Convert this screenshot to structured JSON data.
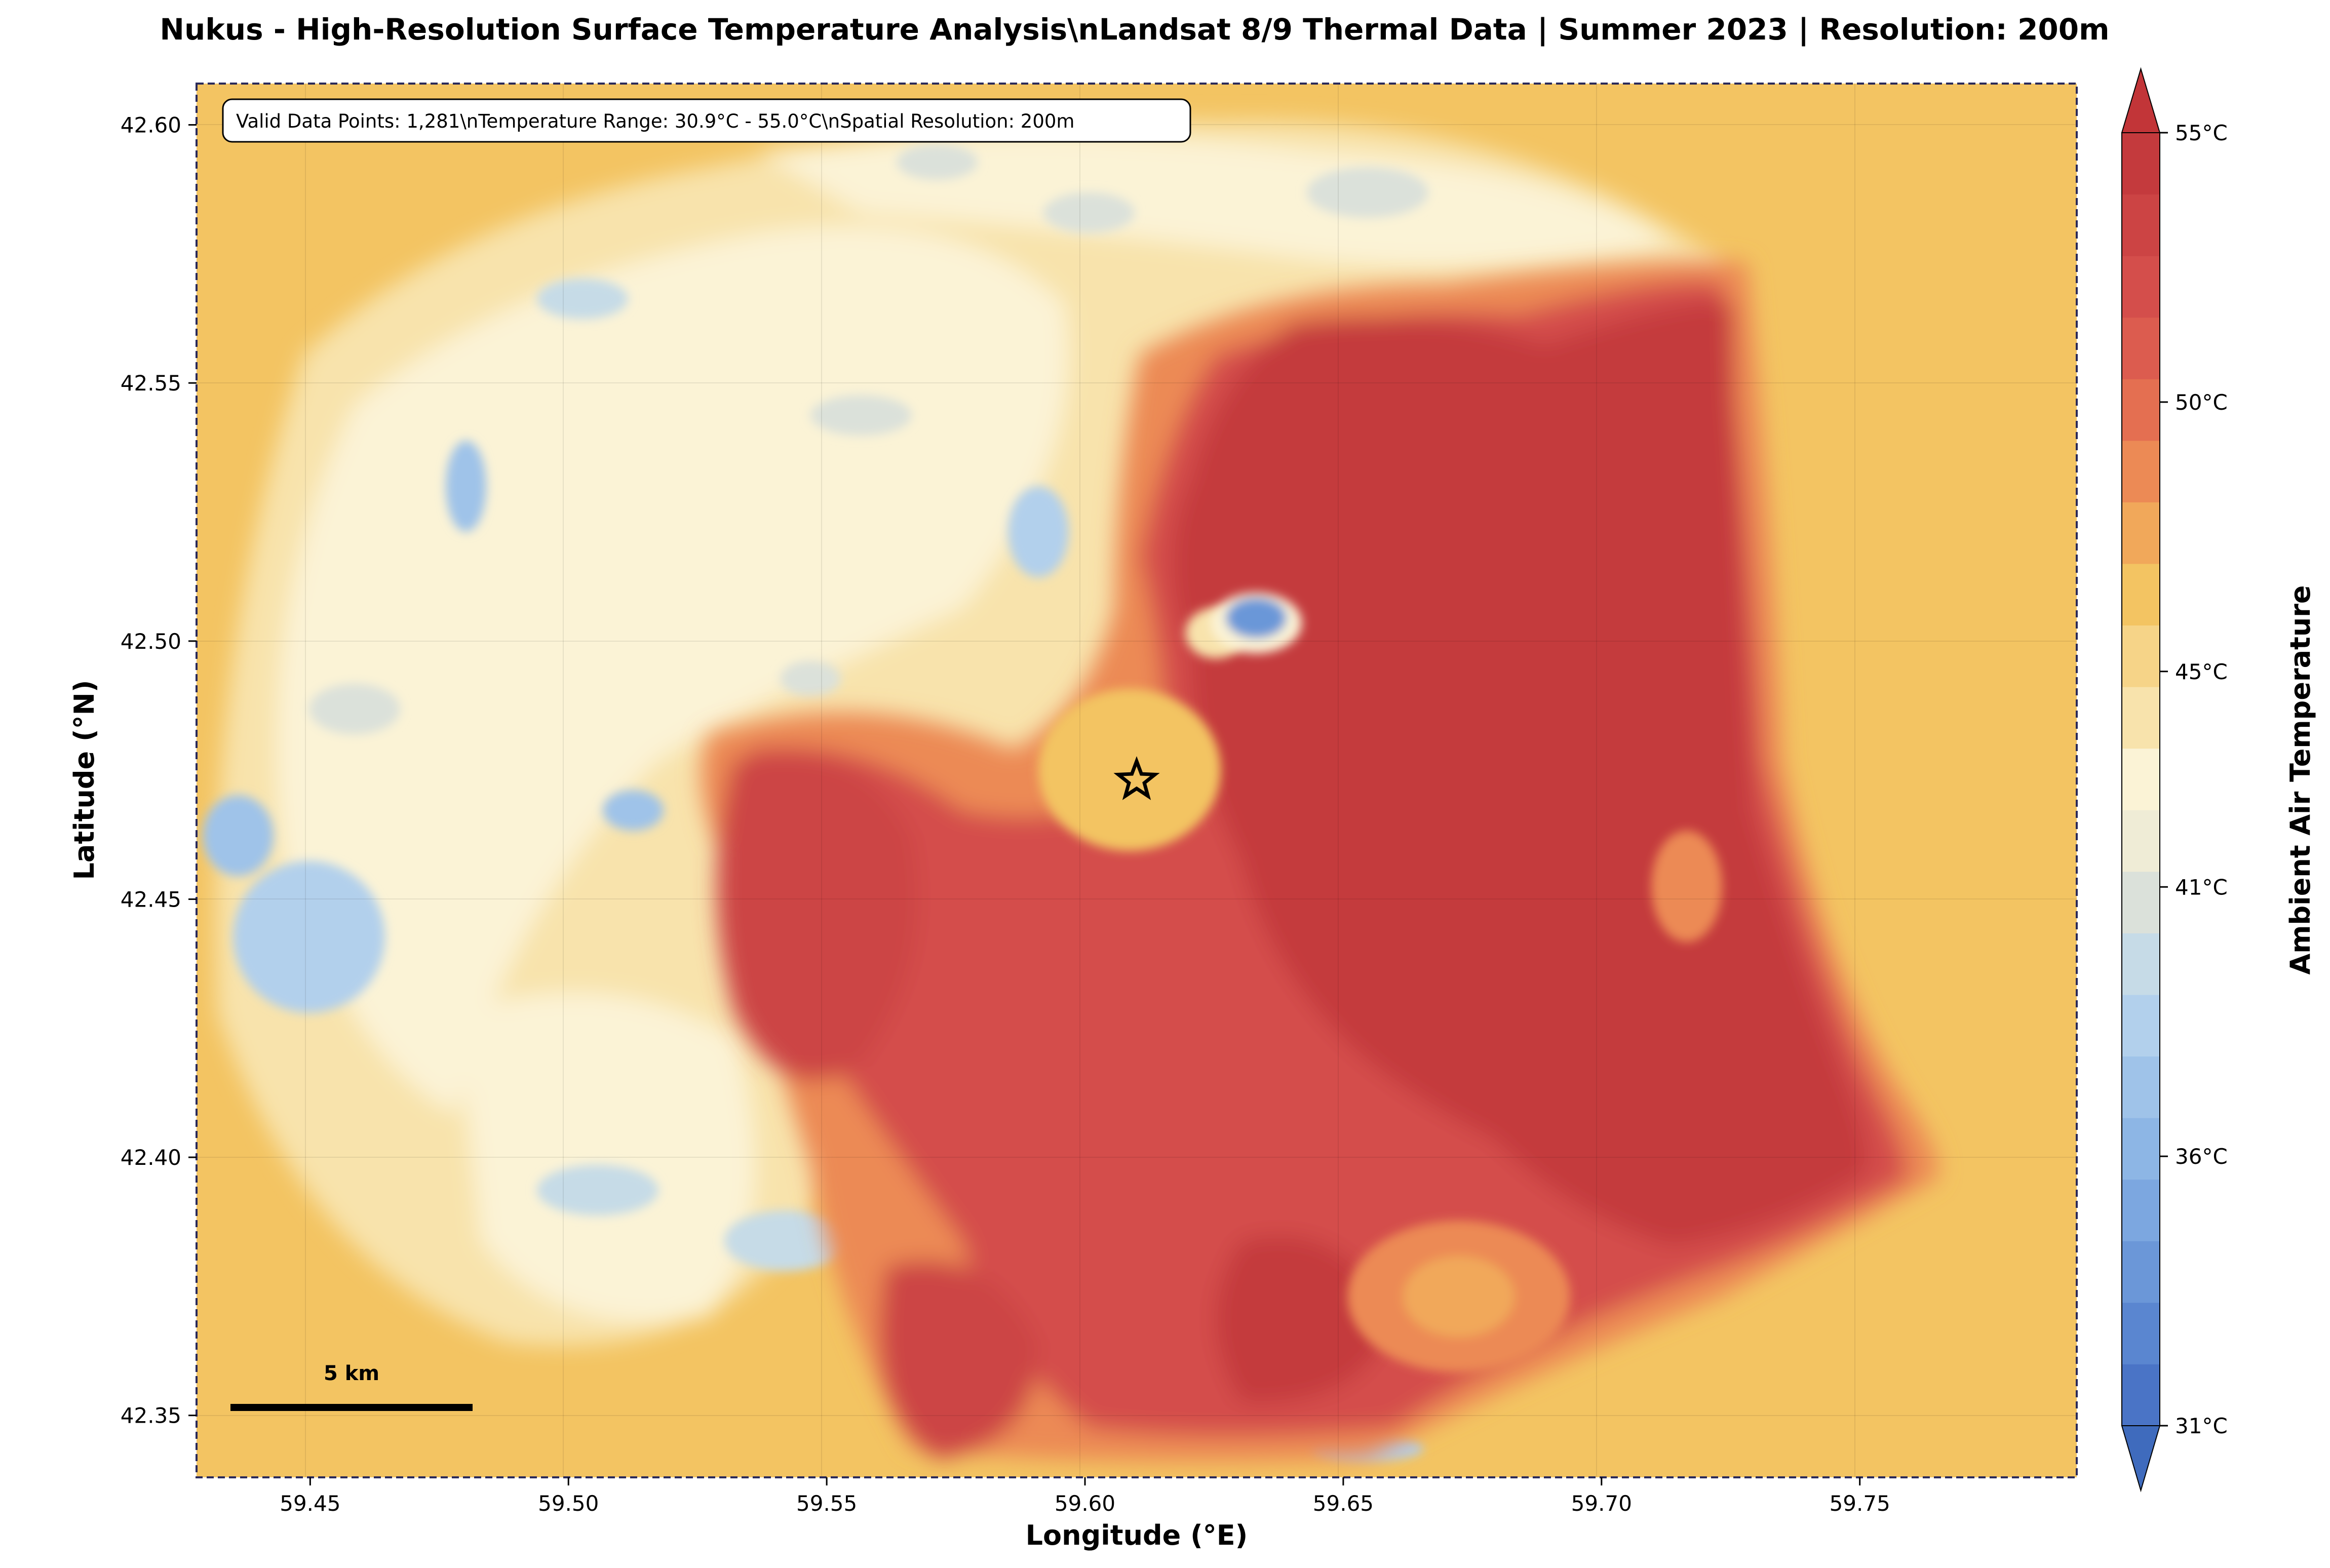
{
  "title": "Nukus - High-Resolution Surface Temperature Analysis\\nLandsat 8/9 Thermal Data | Summer 2023 | Resolution: 200m",
  "info_box": "Valid Data Points: 1,281\\nTemperature Range: 30.9°C - 55.0°C\\nSpatial Resolution: 200m",
  "scale_bar": {
    "label": "5 km",
    "length_km": 5
  },
  "marker": {
    "icon": "star-icon",
    "lon": 59.61,
    "lat": 42.473
  },
  "x_axis": {
    "label": "Longitude (°E)",
    "range": [
      59.428,
      59.792
    ],
    "ticks": [
      {
        "value": 59.45,
        "label": "59.45"
      },
      {
        "value": 59.5,
        "label": "59.50"
      },
      {
        "value": 59.55,
        "label": "59.55"
      },
      {
        "value": 59.6,
        "label": "59.60"
      },
      {
        "value": 59.65,
        "label": "59.65"
      },
      {
        "value": 59.7,
        "label": "59.70"
      },
      {
        "value": 59.75,
        "label": "59.75"
      }
    ]
  },
  "y_axis": {
    "label": "Latitude (°N)",
    "range": [
      42.338,
      42.608
    ],
    "ticks": [
      {
        "value": 42.35,
        "label": "42.35"
      },
      {
        "value": 42.4,
        "label": "42.40"
      },
      {
        "value": 42.45,
        "label": "42.45"
      },
      {
        "value": 42.5,
        "label": "42.50"
      },
      {
        "value": 42.55,
        "label": "42.55"
      },
      {
        "value": 42.6,
        "label": "42.60"
      }
    ]
  },
  "colorbar": {
    "label": "Ambient Air Temperature",
    "range": [
      31,
      55
    ],
    "extend": "both",
    "ticks": [
      {
        "value": 31,
        "label": "31°C"
      },
      {
        "value": 36,
        "label": "36°C"
      },
      {
        "value": 41,
        "label": "41°C"
      },
      {
        "value": 45,
        "label": "45°C"
      },
      {
        "value": 50,
        "label": "50°C"
      },
      {
        "value": 55,
        "label": "55°C"
      }
    ],
    "colors": [
      "#4a74c6",
      "#5a86d0",
      "#6b97d8",
      "#7ca7e0",
      "#8db6e5",
      "#9fc3e9",
      "#b2d0ec",
      "#c6dbe7",
      "#dbe1da",
      "#efecd6",
      "#fbf3d6",
      "#f8e3ac",
      "#f6d488",
      "#f3c462",
      "#f1a85a",
      "#ec8a55",
      "#e46f51",
      "#dc5c4f",
      "#d44e4b",
      "#cc4444",
      "#c43a3d"
    ],
    "under_color": "#3f6bbd",
    "over_color": "#c23538"
  },
  "field_colors": {
    "background": "#f3c462",
    "cool_blue": "#9fc3e9",
    "pale": "#fbf3d6",
    "hot_red": "#cc4444"
  }
}
